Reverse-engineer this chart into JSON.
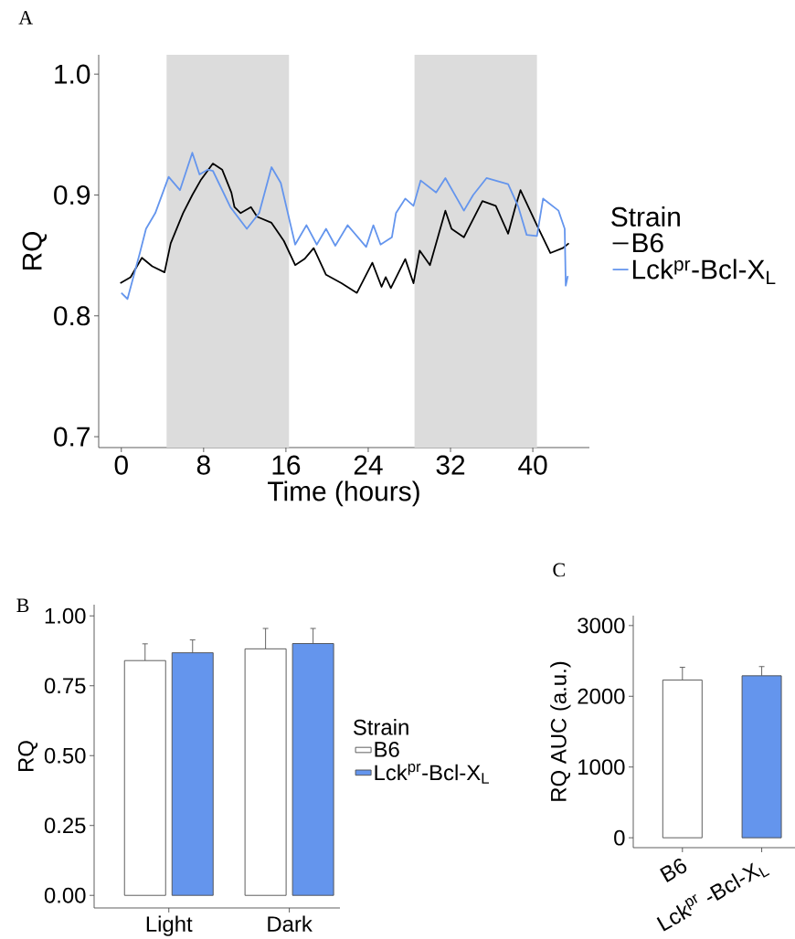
{
  "chart_data": [
    {
      "type": "line",
      "xlabel": "Time (hours)",
      "ylabel": "RQ",
      "legend_title": "Strain",
      "legend": "right",
      "annotations": [
        "A"
      ],
      "xlim": [
        -2.2,
        45.5
      ],
      "ylim": [
        0.691,
        1.016
      ],
      "xticks": [
        0,
        8,
        16,
        24,
        32,
        40
      ],
      "yticks": [
        {
          "value": 0.7,
          "label": "0.7"
        },
        {
          "value": 0.8,
          "label": "0.8"
        },
        {
          "value": 0.9,
          "label": "0.9"
        },
        {
          "value": 1.0,
          "label": "1.0"
        }
      ],
      "bands": [
        {
          "axis": "x",
          "from": 4.4,
          "to": 16.3,
          "color": "#dcdcdc"
        },
        {
          "axis": "x",
          "from": 28.5,
          "to": 40.4,
          "color": "#dcdcdc"
        }
      ],
      "series": [
        {
          "name": "B6",
          "color": "#000000",
          "x": [
            -0.1,
            0.9,
            2.0,
            3.0,
            4.2,
            4.8,
            6.0,
            6.9,
            7.7,
            8.9,
            9.8,
            10.7,
            11.0,
            11.6,
            12.6,
            13.2,
            14.6,
            15.8,
            16.9,
            17.8,
            18.7,
            19.9,
            21.4,
            22.9,
            24.4,
            25.3,
            25.7,
            26.2,
            27.6,
            28.4,
            29.0,
            30.0,
            31.5,
            32.1,
            33.3,
            35.1,
            36.4,
            37.6,
            38.3,
            38.8,
            40.4,
            41.7,
            42.9,
            43.5
          ],
          "values": [
            0.827,
            0.832,
            0.848,
            0.841,
            0.836,
            0.86,
            0.885,
            0.9,
            0.912,
            0.926,
            0.921,
            0.902,
            0.89,
            0.885,
            0.89,
            0.882,
            0.877,
            0.862,
            0.842,
            0.847,
            0.856,
            0.834,
            0.827,
            0.819,
            0.844,
            0.824,
            0.832,
            0.823,
            0.847,
            0.827,
            0.854,
            0.842,
            0.887,
            0.872,
            0.865,
            0.895,
            0.891,
            0.868,
            0.89,
            0.904,
            0.875,
            0.852,
            0.856,
            0.86
          ]
        },
        {
          "name": "Lck$^{pr}$-Bcl-X$_{L}$",
          "color": "#6495ed",
          "x": [
            0.0,
            0.6,
            1.8,
            2.4,
            3.3,
            4.6,
            5.7,
            6.9,
            7.6,
            8.4,
            8.9,
            10.6,
            12.2,
            13.4,
            14.6,
            15.5,
            16.9,
            18.0,
            19.0,
            19.9,
            20.8,
            22.0,
            23.8,
            24.5,
            25.2,
            26.3,
            26.7,
            27.6,
            28.4,
            29.1,
            30.6,
            31.5,
            33.3,
            34.2,
            35.5,
            37.6,
            38.6,
            39.4,
            40.4,
            41.0,
            42.5,
            43.1,
            43.2,
            43.4
          ],
          "values": [
            0.819,
            0.814,
            0.852,
            0.872,
            0.885,
            0.915,
            0.904,
            0.935,
            0.917,
            0.921,
            0.92,
            0.89,
            0.872,
            0.885,
            0.923,
            0.91,
            0.859,
            0.875,
            0.859,
            0.872,
            0.858,
            0.875,
            0.857,
            0.875,
            0.859,
            0.865,
            0.885,
            0.897,
            0.891,
            0.912,
            0.902,
            0.914,
            0.887,
            0.9,
            0.914,
            0.909,
            0.89,
            0.867,
            0.866,
            0.897,
            0.887,
            0.872,
            0.825,
            0.833
          ]
        }
      ]
    },
    {
      "type": "bar",
      "ylabel": "RQ",
      "legend_title": "Strain",
      "legend": "right",
      "annotations": [
        "B"
      ],
      "categories": [
        "Light",
        "Dark"
      ],
      "ylim": [
        -0.045,
        1.04
      ],
      "yticks": [
        {
          "value": 0,
          "label": "0.00"
        },
        {
          "value": 0.25,
          "label": "0.25"
        },
        {
          "value": 0.5,
          "label": "0.50"
        },
        {
          "value": 0.75,
          "label": "0.75"
        },
        {
          "value": 1.0,
          "label": "1.00"
        }
      ],
      "series": [
        {
          "name": "B6",
          "color": "#ffffff",
          "values": [
            0.84,
            0.882
          ],
          "errors": [
            [
              0.84,
              0.9
            ],
            [
              0.882,
              0.955
            ]
          ]
        },
        {
          "name": "Lck$^{pr}$-Bcl-X$_{L}$",
          "color": "#6495ed",
          "values": [
            0.868,
            0.901
          ],
          "errors": [
            [
              0.868,
              0.914
            ],
            [
              0.901,
              0.955
            ]
          ]
        }
      ]
    },
    {
      "type": "bar",
      "ylabel": "RQ AUC (a.u.)",
      "annotations": [
        "C"
      ],
      "categories": [
        "B6",
        "Lck$^{pr}$ -Bcl-X$_{L}$"
      ],
      "ylim": [
        -140,
        3140
      ],
      "yticks": [
        0,
        1000,
        2000,
        3000
      ],
      "colors": [
        "#ffffff",
        "#6495ed"
      ],
      "values": [
        2230,
        2290
      ],
      "errors": [
        [
          2230,
          2410
        ],
        [
          2290,
          2420
        ]
      ]
    }
  ]
}
